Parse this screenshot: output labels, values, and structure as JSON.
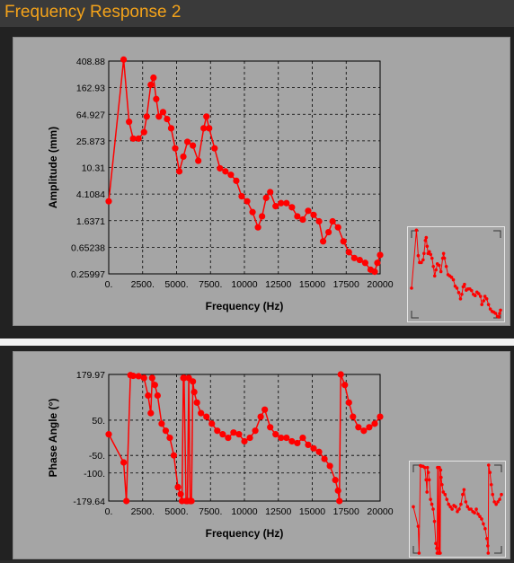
{
  "window": {
    "title": "Frequency Response 2"
  },
  "chart_data": [
    {
      "type": "scatter",
      "title": "",
      "xlabel": "Frequency (Hz)",
      "ylabel": "Amplitude (mm)",
      "log_y": true,
      "xlim": [
        0,
        20000
      ],
      "ylim": [
        0.25997,
        408.88
      ],
      "grid": true,
      "xticks": [
        "0.",
        "2500.",
        "5000.",
        "7500.",
        "10000",
        "12500",
        "15000",
        "17500",
        "20000"
      ],
      "yticks": [
        "408.88",
        "162.93",
        "64.927",
        "25.873",
        "10.31",
        "4.1084",
        "1.6371",
        "0.65238",
        "0.25997"
      ],
      "series": [
        {
          "color": "#ff0000",
          "x": [
            0,
            1100,
            1500,
            1800,
            2200,
            2600,
            2800,
            3100,
            3300,
            3500,
            3700,
            4000,
            4300,
            4600,
            4900,
            5200,
            5500,
            5800,
            6200,
            6600,
            7000,
            7200,
            7400,
            7800,
            8200,
            8600,
            9000,
            9400,
            9800,
            10200,
            10600,
            11000,
            11300,
            11600,
            11900,
            12300,
            12700,
            13100,
            13500,
            13900,
            14300,
            14700,
            15100,
            15500,
            15800,
            16200,
            16500,
            16900,
            17300,
            17700,
            18100,
            18500,
            18900,
            19300,
            19600,
            19800,
            20000
          ],
          "y": [
            3.2,
            430,
            50,
            28,
            28,
            35,
            60,
            180,
            230,
            110,
            60,
            70,
            55,
            40,
            20,
            9,
            15,
            25,
            22,
            13,
            40,
            60,
            40,
            20,
            10,
            9,
            8,
            6.5,
            3.8,
            3.2,
            2.2,
            1.3,
            1.9,
            3.6,
            4.4,
            2.7,
            3.0,
            3.0,
            2.6,
            1.9,
            1.7,
            2.3,
            2.0,
            1.6,
            0.8,
            1.1,
            1.6,
            1.3,
            0.8,
            0.55,
            0.45,
            0.42,
            0.38,
            0.3,
            0.28,
            0.38,
            0.5
          ]
        }
      ]
    },
    {
      "type": "scatter",
      "title": "",
      "xlabel": "Frequency (Hz)",
      "ylabel": "Phase Angle (°)",
      "xlim": [
        0,
        20000
      ],
      "ylim": [
        -179.64,
        179.97
      ],
      "grid": true,
      "xticks": [
        "0.",
        "2500.",
        "5000.",
        "7500.",
        "10000",
        "12500",
        "15000",
        "17500",
        "20000"
      ],
      "yticks": [
        "179.97",
        "50.",
        "-50.",
        "-100.",
        "-179.64"
      ],
      "series": [
        {
          "color": "#ff0000",
          "x": [
            0,
            1100,
            1300,
            1600,
            1800,
            2200,
            2600,
            2900,
            3100,
            3200,
            3400,
            3600,
            3900,
            4200,
            4500,
            4800,
            5100,
            5300,
            5400,
            5500,
            5550,
            5700,
            5800,
            5900,
            6000,
            6100,
            6200,
            6300,
            6500,
            6800,
            7200,
            7600,
            8000,
            8400,
            8800,
            9200,
            9600,
            10000,
            10400,
            10800,
            11200,
            11500,
            11900,
            12300,
            12700,
            13100,
            13500,
            13900,
            14300,
            14700,
            15100,
            15500,
            15900,
            16300,
            16700,
            16900,
            17000,
            17100,
            17400,
            17700,
            18000,
            18400,
            18800,
            19200,
            19600,
            20000
          ],
          "y": [
            10,
            -70,
            -179.64,
            178,
            176,
            175,
            170,
            120,
            70,
            170,
            150,
            120,
            40,
            20,
            0,
            -50,
            -140,
            -160,
            -179.64,
            170,
            170,
            -179.64,
            -179.64,
            170,
            -179.64,
            -179.64,
            160,
            130,
            100,
            70,
            60,
            40,
            20,
            10,
            0,
            15,
            10,
            -10,
            0,
            20,
            60,
            80,
            30,
            10,
            0,
            0,
            -10,
            -15,
            0,
            -20,
            -30,
            -40,
            -60,
            -80,
            -120,
            -150,
            -179.64,
            179.97,
            150,
            100,
            60,
            30,
            20,
            30,
            40,
            60
          ]
        }
      ]
    }
  ]
}
